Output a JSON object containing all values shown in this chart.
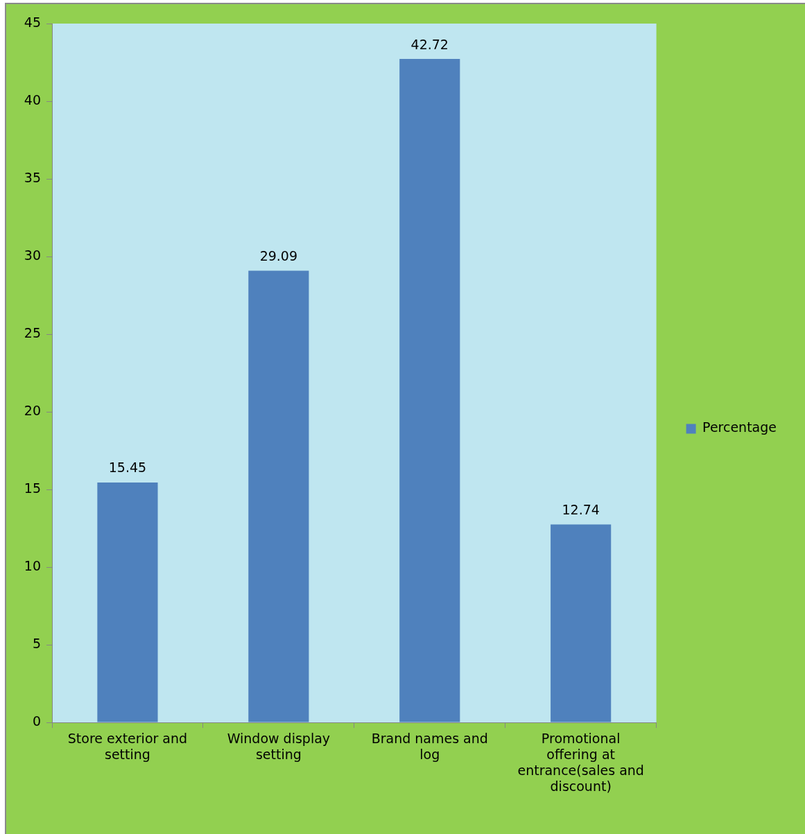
{
  "chart_data": {
    "type": "bar",
    "categories": [
      "Store exterior and setting",
      "Window display setting",
      "Brand names and log",
      "Promotional offering at entrance(sales and discount)"
    ],
    "series": [
      {
        "name": "Percentage",
        "color": "#4f81bd",
        "values": [
          15.45,
          29.09,
          42.72,
          12.74
        ]
      }
    ],
    "ylim": [
      0,
      45
    ],
    "yticks": [
      0,
      5,
      10,
      15,
      20,
      25,
      30,
      35,
      40,
      45
    ],
    "data_labels": true,
    "legend": "right",
    "grid": false
  }
}
